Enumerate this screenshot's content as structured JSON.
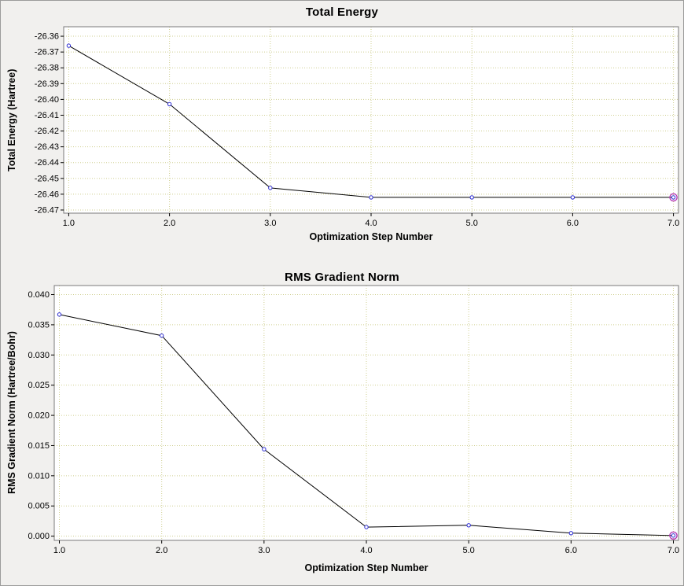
{
  "colors": {
    "background": "#f1f0ee",
    "plot_bg": "#ffffff",
    "grid": "#cfcf90",
    "frame": "#7a7a7a",
    "line": "#000000",
    "marker": "#2a2ad4",
    "marker_fill": "#ffffff",
    "highlight": "#b330b3",
    "tick_color": "#000000"
  },
  "chart_data": [
    {
      "type": "line",
      "title": "Total Energy",
      "xlabel": "Optimization Step Number",
      "ylabel": "Total Energy (Hartree)",
      "x": [
        1,
        2,
        3,
        4,
        5,
        6,
        7
      ],
      "y": [
        -26.366,
        -26.403,
        -26.456,
        -26.462,
        -26.462,
        -26.462,
        -26.462
      ],
      "xlim": [
        0.95,
        7.05
      ],
      "ylim": [
        -26.472,
        -26.354
      ],
      "xticks": [
        1,
        2,
        3,
        4,
        5,
        6,
        7
      ],
      "xticklabels": [
        "1.0",
        "2.0",
        "3.0",
        "4.0",
        "5.0",
        "6.0",
        "7.0"
      ],
      "yticks": [
        -26.36,
        -26.37,
        -26.38,
        -26.39,
        -26.4,
        -26.41,
        -26.42,
        -26.43,
        -26.44,
        -26.45,
        -26.46,
        -26.47
      ],
      "yticklabels": [
        "-26.36",
        "-26.37",
        "-26.38",
        "-26.39",
        "-26.40",
        "-26.41",
        "-26.42",
        "-26.43",
        "-26.44",
        "-26.45",
        "-26.46",
        "-26.47"
      ],
      "grid": true,
      "highlight_last_point": true
    },
    {
      "type": "line",
      "title": "RMS Gradient Norm",
      "xlabel": "Optimization Step Number",
      "ylabel": "RMS Gradient Norm (Hartree/Bohr)",
      "x": [
        1,
        2,
        3,
        4,
        5,
        6,
        7
      ],
      "y": [
        0.0367,
        0.0332,
        0.0144,
        0.0015,
        0.0018,
        0.0005,
        0.0001
      ],
      "xlim": [
        0.95,
        7.05
      ],
      "ylim": [
        -0.0007,
        0.0415
      ],
      "xticks": [
        1,
        2,
        3,
        4,
        5,
        6,
        7
      ],
      "xticklabels": [
        "1.0",
        "2.0",
        "3.0",
        "4.0",
        "5.0",
        "6.0",
        "7.0"
      ],
      "yticks": [
        0.0,
        0.005,
        0.01,
        0.015,
        0.02,
        0.025,
        0.03,
        0.035,
        0.04
      ],
      "yticklabels": [
        "0.000",
        "0.005",
        "0.010",
        "0.015",
        "0.020",
        "0.025",
        "0.030",
        "0.035",
        "0.040"
      ],
      "grid": true,
      "highlight_last_point": true
    }
  ]
}
